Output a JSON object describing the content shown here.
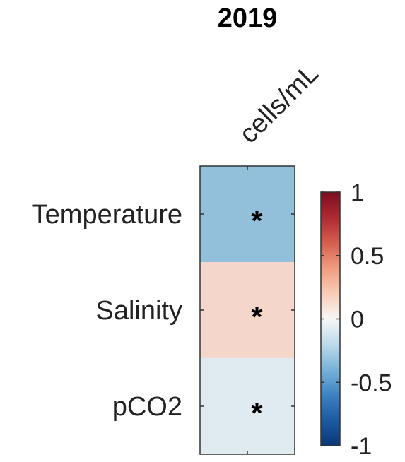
{
  "chart_data": {
    "type": "heatmap",
    "title": "2019",
    "columns": [
      "cells/mL"
    ],
    "rows": [
      "Temperature",
      "Salinity",
      "pCO2"
    ],
    "values": [
      [
        -0.35
      ],
      [
        0.15
      ],
      [
        -0.08
      ]
    ],
    "significance": [
      [
        "*"
      ],
      [
        "*"
      ],
      [
        "*"
      ]
    ],
    "colorbar": {
      "colormap": "red-white-blue (diverging)",
      "range": [
        -1,
        1
      ],
      "ticks": [
        -1,
        -0.5,
        0,
        0.5,
        1
      ],
      "tick_labels": [
        "-1",
        "-0.5",
        "0",
        "0.5",
        "1"
      ],
      "low_color": "#0a3876",
      "mid_color": "#f7f7f7",
      "high_color": "#7c0d20"
    }
  }
}
